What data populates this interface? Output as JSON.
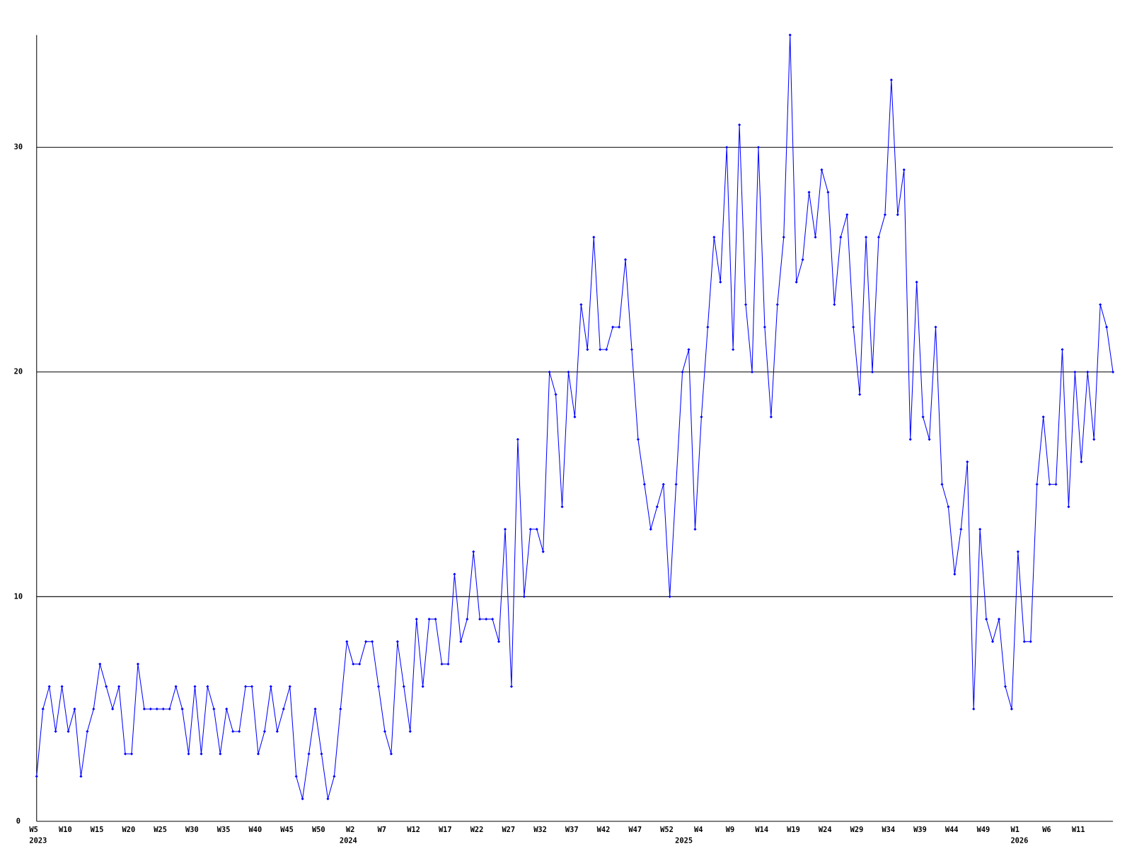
{
  "chart_data": {
    "type": "line",
    "categories": [
      "W5",
      null,
      null,
      null,
      null,
      "W10",
      null,
      null,
      null,
      null,
      "W15",
      null,
      null,
      null,
      null,
      "W20",
      null,
      null,
      null,
      null,
      "W25",
      null,
      null,
      null,
      null,
      "W30",
      null,
      null,
      null,
      null,
      "W35",
      null,
      null,
      null,
      null,
      "W40",
      null,
      null,
      null,
      null,
      "W45",
      null,
      null,
      null,
      null,
      "W50",
      null,
      null,
      null,
      null,
      "W2",
      null,
      null,
      null,
      null,
      "W7",
      null,
      null,
      null,
      null,
      "W12",
      null,
      null,
      null,
      null,
      "W17",
      null,
      null,
      null,
      null,
      "W22",
      null,
      null,
      null,
      null,
      "W27",
      null,
      null,
      null,
      null,
      "W32",
      null,
      null,
      null,
      null,
      "W37",
      null,
      null,
      null,
      null,
      "W42",
      null,
      null,
      null,
      null,
      "W47",
      null,
      null,
      null,
      null,
      "W52",
      null,
      null,
      null,
      null,
      "W4",
      null,
      null,
      null,
      null,
      "W9",
      null,
      null,
      null,
      null,
      "W14",
      null,
      null,
      null,
      null,
      "W19",
      null,
      null,
      null,
      null,
      "W24",
      null,
      null,
      null,
      null,
      "W29",
      null,
      null,
      null,
      null,
      "W34",
      null,
      null,
      null,
      null,
      "W39",
      null,
      null,
      null,
      null,
      "W44",
      null,
      null,
      null,
      null,
      "W49",
      null,
      null,
      null,
      null,
      "W1",
      null,
      null,
      null,
      null,
      "W6",
      null,
      null,
      null,
      null,
      "W11",
      null,
      null,
      null,
      null,
      null
    ],
    "years": [
      "2023",
      null,
      null,
      null,
      null,
      null,
      null,
      null,
      null,
      null,
      null,
      null,
      null,
      null,
      null,
      null,
      null,
      null,
      null,
      null,
      null,
      null,
      null,
      null,
      null,
      null,
      null,
      null,
      null,
      null,
      null,
      null,
      null,
      null,
      null,
      null,
      null,
      null,
      null,
      null,
      null,
      null,
      null,
      null,
      null,
      null,
      null,
      null,
      null,
      "2024",
      null,
      null,
      null,
      null,
      null,
      null,
      null,
      null,
      null,
      null,
      null,
      null,
      null,
      null,
      null,
      null,
      null,
      null,
      null,
      null,
      null,
      null,
      null,
      null,
      null,
      null,
      null,
      null,
      null,
      null,
      null,
      null,
      null,
      null,
      null,
      null,
      null,
      null,
      null,
      null,
      null,
      null,
      null,
      null,
      null,
      null,
      null,
      null,
      null,
      null,
      null,
      null,
      "2025",
      null,
      null,
      null,
      null,
      null,
      null,
      null,
      null,
      null,
      null,
      null,
      null,
      null,
      null,
      null,
      null,
      null,
      null,
      null,
      null,
      null,
      null,
      null,
      null,
      null,
      null,
      null,
      null,
      null,
      null,
      null,
      null,
      null,
      null,
      null,
      null,
      null,
      null,
      null,
      null,
      null,
      null,
      null,
      null,
      null,
      null,
      null,
      null,
      null,
      null,
      null,
      null,
      "2026",
      null,
      null,
      null,
      null,
      null,
      null,
      null,
      null,
      null,
      null,
      null,
      null,
      null,
      null,
      null
    ],
    "values": [
      2,
      5,
      6,
      4,
      6,
      4,
      5,
      2,
      4,
      5,
      7,
      6,
      5,
      6,
      3,
      3,
      7,
      5,
      5,
      5,
      5,
      5,
      6,
      5,
      3,
      6,
      3,
      6,
      5,
      3,
      5,
      4,
      4,
      6,
      6,
      3,
      4,
      6,
      4,
      5,
      6,
      2,
      1,
      3,
      5,
      3,
      1,
      2,
      5,
      8,
      7,
      7,
      8,
      8,
      6,
      4,
      3,
      8,
      6,
      4,
      9,
      6,
      9,
      9,
      7,
      7,
      11,
      8,
      9,
      12,
      9,
      9,
      9,
      8,
      13,
      6,
      17,
      10,
      13,
      13,
      12,
      20,
      19,
      14,
      20,
      18,
      23,
      21,
      26,
      21,
      21,
      22,
      22,
      25,
      21,
      17,
      15,
      13,
      14,
      15,
      10,
      15,
      20,
      21,
      13,
      18,
      22,
      26,
      24,
      30,
      21,
      31,
      23,
      20,
      30,
      22,
      18,
      23,
      26,
      35,
      24,
      25,
      28,
      26,
      29,
      28,
      23,
      26,
      27,
      22,
      19,
      26,
      20,
      26,
      27,
      33,
      27,
      29,
      17,
      24,
      18,
      17,
      22,
      15,
      14,
      11,
      13,
      16,
      5,
      13,
      9,
      8,
      9,
      6,
      5,
      12,
      8,
      8,
      15,
      18,
      15,
      15,
      21,
      14,
      20,
      16,
      20,
      17,
      23,
      22,
      20
    ],
    "color": "#0000ff",
    "ylim": [
      0,
      35
    ],
    "yticks": [
      0,
      10,
      20,
      30
    ],
    "grid": true
  }
}
